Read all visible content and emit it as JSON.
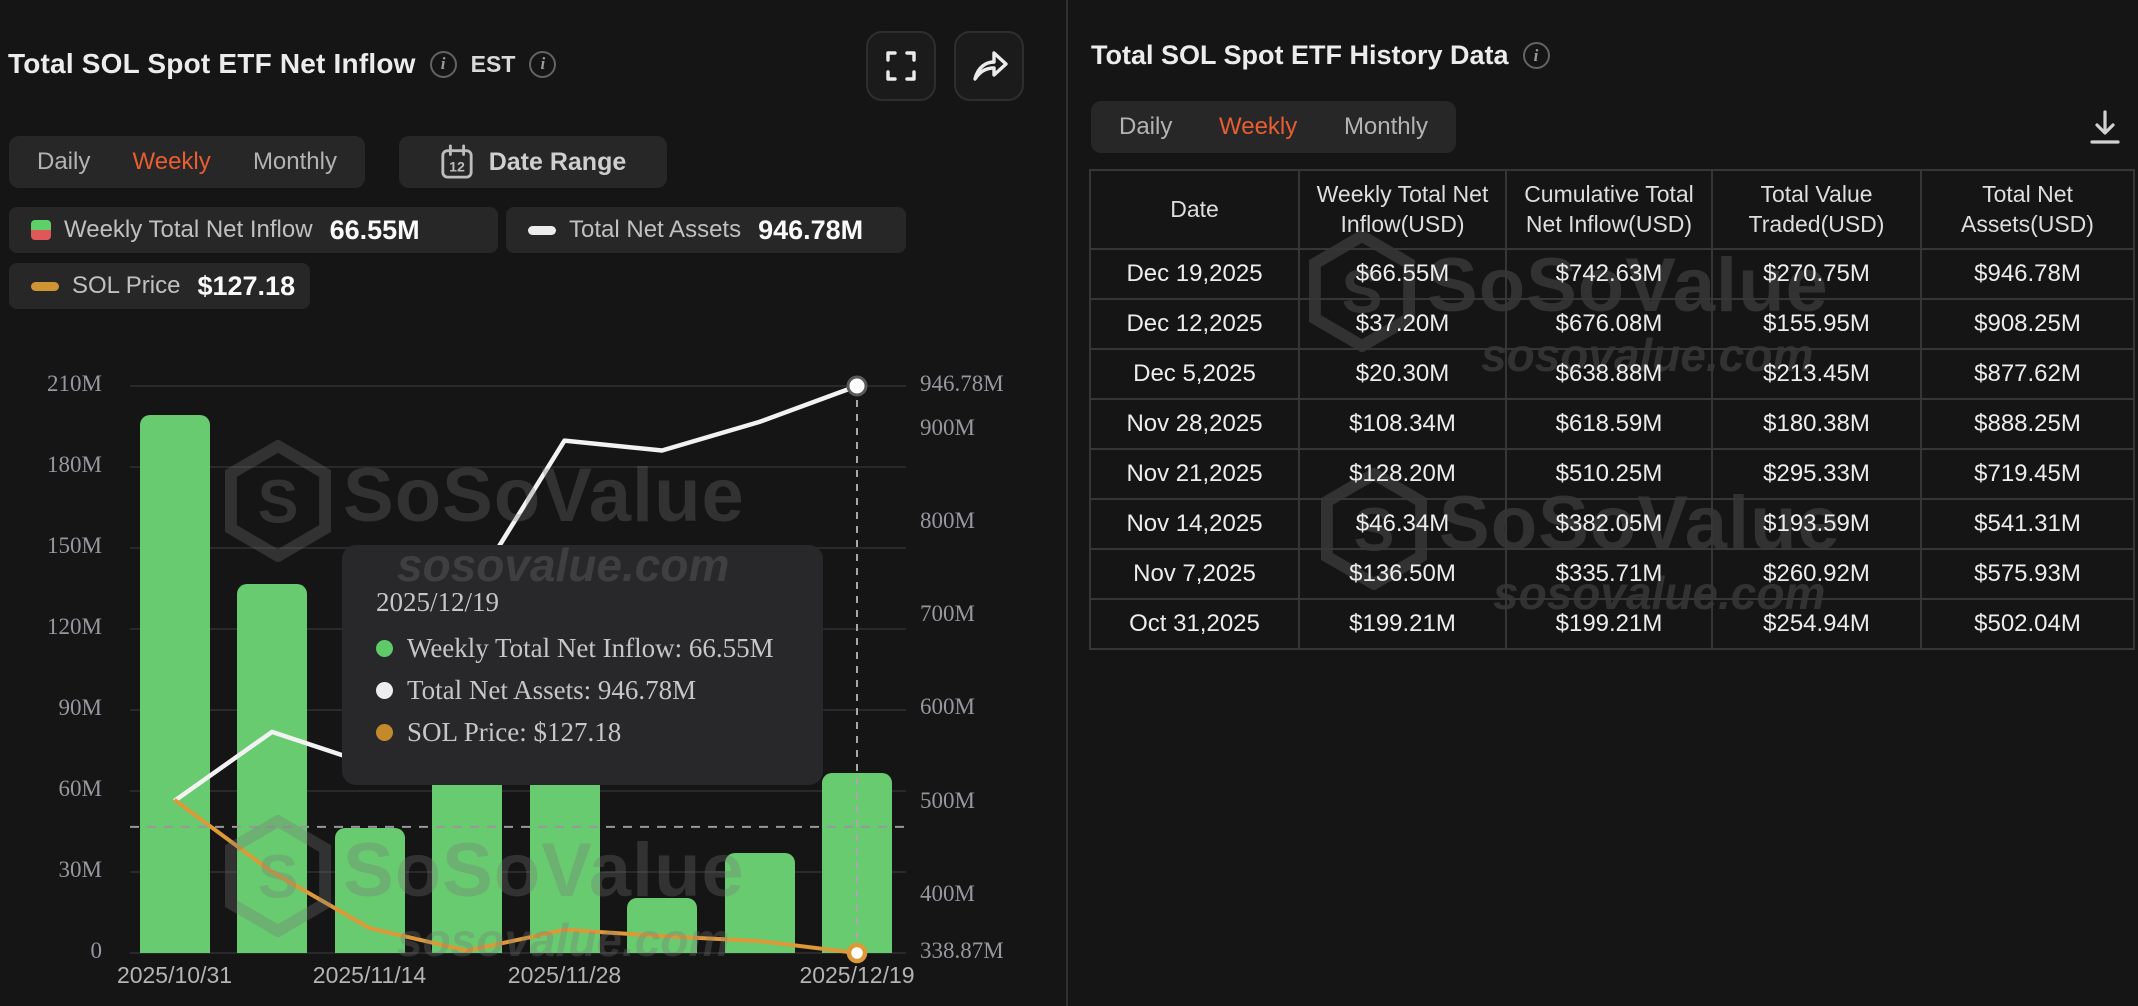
{
  "left_panel": {
    "title": "Total SOL Spot ETF Net Inflow",
    "timezone": "EST",
    "tabs": [
      "Daily",
      "Weekly",
      "Monthly"
    ],
    "active_tab": "Weekly",
    "date_range_label": "Date Range",
    "date_range_icon_day": "12",
    "legend": [
      {
        "label": "Weekly Total Net Inflow",
        "value": "66.55M",
        "swatch": "green-red-square"
      },
      {
        "label": "Total Net Assets",
        "value": "946.78M",
        "swatch": "white-dash"
      },
      {
        "label": "SOL Price",
        "value": "$127.18",
        "swatch": "orange-dash"
      }
    ]
  },
  "chart_data": {
    "type": "bar+line",
    "dates": [
      "2025/10/31",
      "2025/11/07",
      "2025/11/14",
      "2025/11/21",
      "2025/11/28",
      "2025/12/05",
      "2025/12/12",
      "2025/12/19"
    ],
    "x_axis_labels": [
      {
        "index": 0,
        "label": "2025/10/31"
      },
      {
        "index": 2,
        "label": "2025/11/14"
      },
      {
        "index": 4,
        "label": "2025/11/28"
      },
      {
        "index": 7,
        "label": "2025/12/19"
      }
    ],
    "series": [
      {
        "name": "Weekly Total Net Inflow",
        "kind": "bar",
        "axis": "left",
        "unit": "M USD",
        "values": [
          199.21,
          136.5,
          46.34,
          128.2,
          108.34,
          20.3,
          37.2,
          66.55
        ]
      },
      {
        "name": "Total Net Assets",
        "kind": "line",
        "axis": "right",
        "unit": "M USD",
        "values": [
          502.04,
          575.93,
          541.31,
          719.45,
          888.25,
          877.62,
          908.25,
          946.78
        ]
      },
      {
        "name": "SOL Price",
        "kind": "line",
        "axis": "hidden",
        "unit": "USD",
        "last_value_label": "$127.18",
        "shape_fractions": [
          0.27,
          0.143,
          0.044,
          0.004,
          0.041,
          0.03,
          0.021,
          0.0
        ]
      }
    ],
    "left_axis": {
      "range": [
        0,
        210
      ],
      "ticks": [
        {
          "value": 210,
          "label": "210M"
        },
        {
          "value": 180,
          "label": "180M"
        },
        {
          "value": 150,
          "label": "150M"
        },
        {
          "value": 120,
          "label": "120M"
        },
        {
          "value": 90,
          "label": "90M"
        },
        {
          "value": 60,
          "label": "60M"
        },
        {
          "value": 30,
          "label": "30M"
        },
        {
          "value": 0,
          "label": "0"
        }
      ]
    },
    "right_axis": {
      "range": [
        338.87,
        946.78
      ],
      "ticks": [
        {
          "value": 946.78,
          "label": "946.78M"
        },
        {
          "value": 900,
          "label": "900M"
        },
        {
          "value": 800,
          "label": "800M"
        },
        {
          "value": 700,
          "label": "700M"
        },
        {
          "value": 600,
          "label": "600M"
        },
        {
          "value": 500,
          "label": "500M"
        },
        {
          "value": 400,
          "label": "400M"
        },
        {
          "value": 338.87,
          "label": "338.87M"
        }
      ]
    },
    "reference_line_left_value": 46.7,
    "grid": true,
    "tooltip": {
      "date": "2025/12/19",
      "rows": [
        {
          "dot": "#5ecb68",
          "text": "Weekly Total Net Inflow: 66.55M"
        },
        {
          "dot": "#ededed",
          "text": "Total Net Assets: 946.78M"
        },
        {
          "dot": "#c28a2b",
          "text": "SOL Price: $127.18"
        }
      ]
    }
  },
  "right_panel": {
    "title": "Total SOL Spot ETF History Data",
    "tabs": [
      "Daily",
      "Weekly",
      "Monthly"
    ],
    "active_tab": "Weekly",
    "table": {
      "columns": [
        "Date",
        "Weekly Total Net Inflow(USD)",
        "Cumulative Total Net Inflow(USD)",
        "Total Value Traded(USD)",
        "Total Net Assets(USD)"
      ],
      "rows": [
        [
          "Dec 19,2025",
          "$66.55M",
          "$742.63M",
          "$270.75M",
          "$946.78M"
        ],
        [
          "Dec 12,2025",
          "$37.20M",
          "$676.08M",
          "$155.95M",
          "$908.25M"
        ],
        [
          "Dec 5,2025",
          "$20.30M",
          "$638.88M",
          "$213.45M",
          "$877.62M"
        ],
        [
          "Nov 28,2025",
          "$108.34M",
          "$618.59M",
          "$180.38M",
          "$888.25M"
        ],
        [
          "Nov 21,2025",
          "$128.20M",
          "$510.25M",
          "$295.33M",
          "$719.45M"
        ],
        [
          "Nov 14,2025",
          "$46.34M",
          "$382.05M",
          "$193.59M",
          "$541.31M"
        ],
        [
          "Nov 7,2025",
          "$136.50M",
          "$335.71M",
          "$260.92M",
          "$575.93M"
        ],
        [
          "Oct 31,2025",
          "$199.21M",
          "$199.21M",
          "$254.94M",
          "$502.04M"
        ]
      ]
    }
  },
  "watermark": {
    "brand": "SoSoValue",
    "url": "sosovalue.com",
    "logo_letter": "S"
  },
  "colors": {
    "accent_orange": "#e85d32",
    "bar_green": "#68cb70",
    "table_green": "#46d05f",
    "assets_line": "#f2f2f2",
    "price_line": "#dd9838",
    "axis_label": "#97979f",
    "gridline": "#29292c"
  }
}
